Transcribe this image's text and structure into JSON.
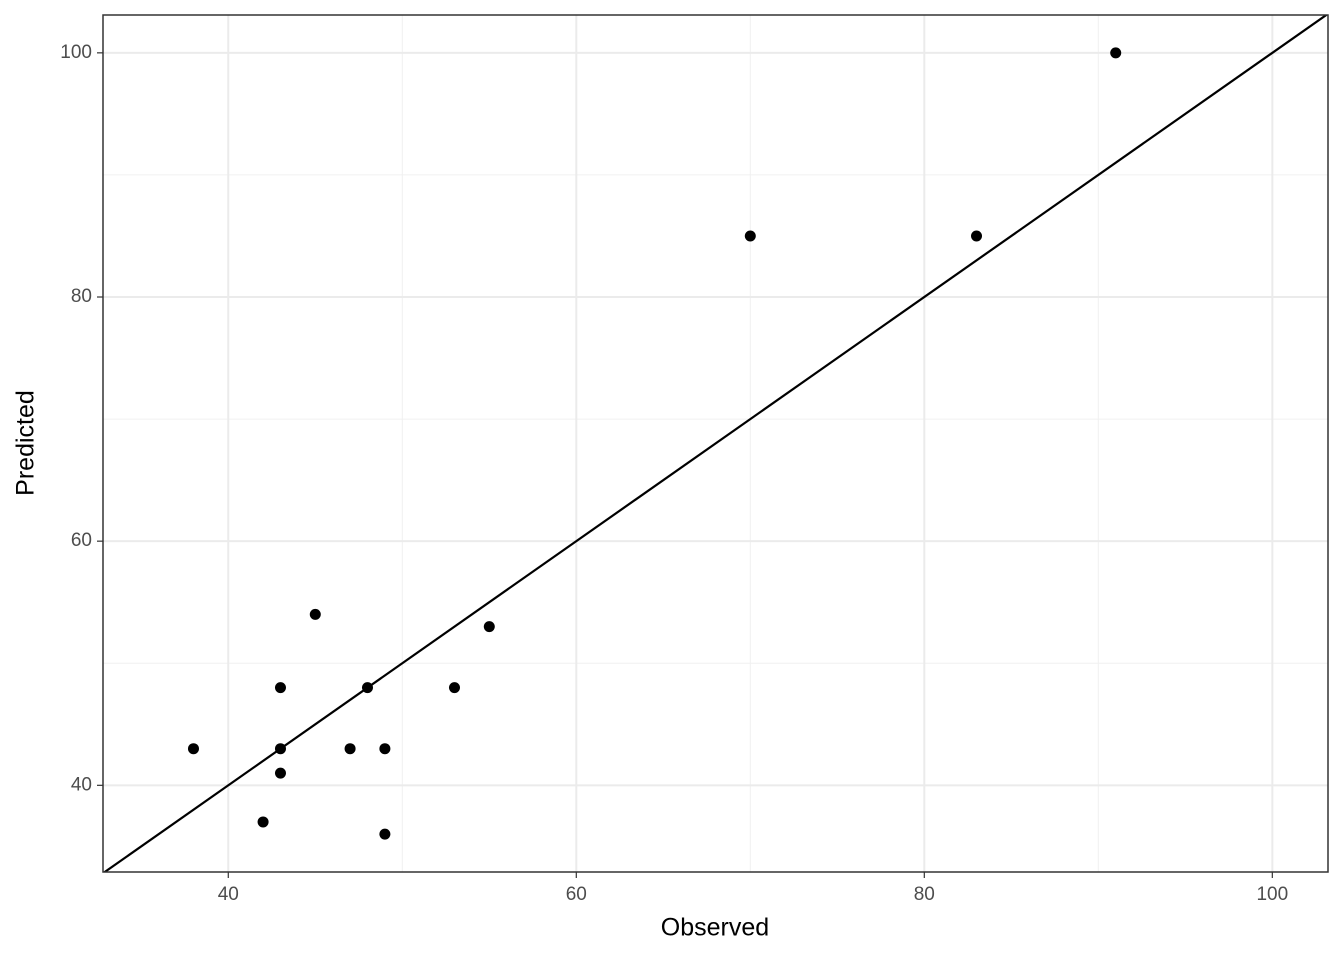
{
  "chart_data": {
    "type": "scatter",
    "x_label": "Observed",
    "y_label": "Predicted",
    "x": [
      38,
      42,
      43,
      43,
      43,
      45,
      47,
      48,
      49,
      49,
      53,
      55,
      70,
      83,
      91
    ],
    "series": [
      {
        "color": "#000000",
        "values": [
          43,
          37,
          48,
          43,
          41,
          54,
          43,
          48,
          43,
          36,
          48,
          53,
          85,
          85,
          100
        ]
      }
    ],
    "xlim": [
      32.8,
      103.2
    ],
    "ylim": [
      32.9,
      103.1
    ],
    "xticks": [
      40,
      60,
      80,
      100
    ],
    "yticks": [
      40,
      60,
      80,
      100
    ],
    "minor_xticks": [
      50,
      70,
      90
    ],
    "minor_yticks": [
      50,
      70,
      90
    ],
    "grid": true,
    "reference_line": {
      "slope": 1,
      "intercept": 0,
      "color": "#000000"
    }
  }
}
